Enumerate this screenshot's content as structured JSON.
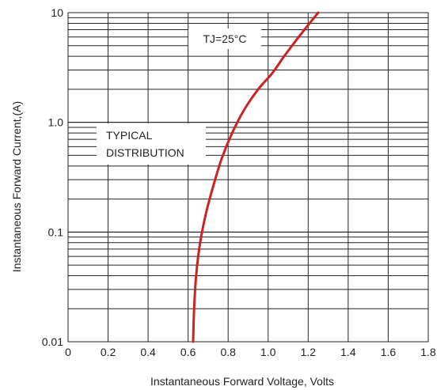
{
  "chart_data": {
    "type": "line",
    "xscale": "linear",
    "yscale": "log",
    "xlim": [
      0,
      1.8
    ],
    "ylim": [
      0.01,
      10
    ],
    "grid": true,
    "xlabel": "Instantaneous Forward Voltage, Volts",
    "ylabel": "Instantaneous Forward Current,(A)",
    "x_ticks": [
      "0",
      "0.2",
      "0.4",
      "0.6",
      "0.8",
      "1.0",
      "1.2",
      "1.4",
      "1.6",
      "1.8"
    ],
    "y_ticks": [
      "0.01",
      "0.1",
      "1.0",
      "10"
    ],
    "annotations": [
      "TJ=25°C",
      "TYPICAL",
      "DISTRIBUTION"
    ],
    "line_color": "#cc2222",
    "series": [
      {
        "x": [
          0.625,
          0.63,
          0.64,
          0.66,
          0.69,
          0.73,
          0.77,
          0.82,
          0.88,
          0.95,
          1.02,
          1.08,
          1.14,
          1.2,
          1.25
        ],
        "y": [
          0.01,
          0.02,
          0.04,
          0.08,
          0.15,
          0.28,
          0.48,
          0.8,
          1.3,
          2.0,
          2.8,
          4.0,
          5.6,
          7.7,
          10
        ]
      }
    ]
  }
}
